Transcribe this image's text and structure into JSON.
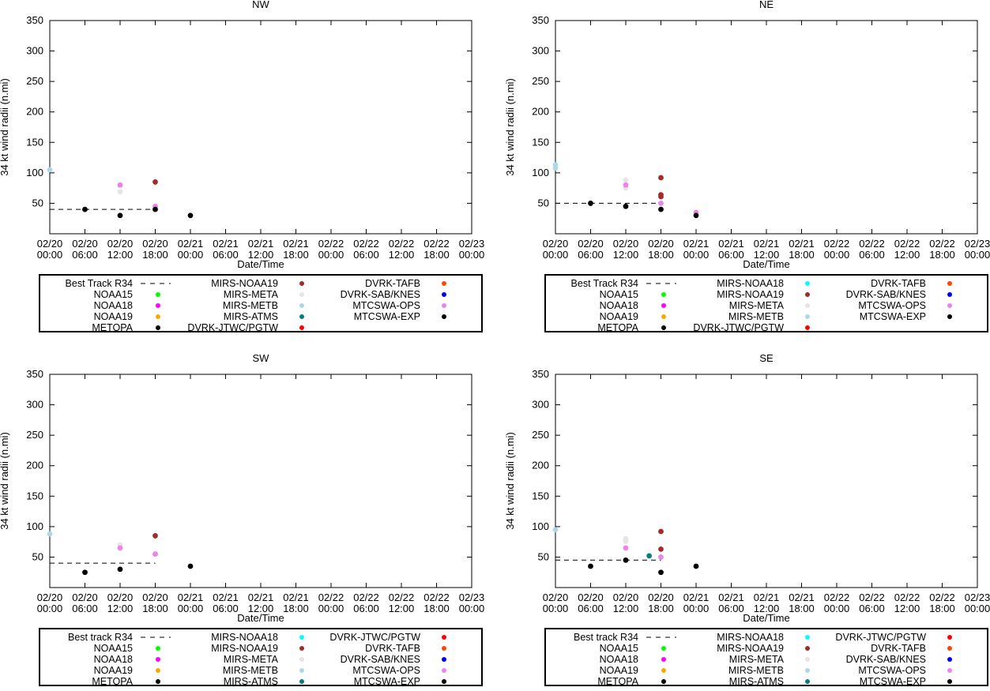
{
  "shared": {
    "ylabel": "34 kt wind radii (n.mi)",
    "xlabel": "Date/Time",
    "ylim": [
      0,
      350
    ],
    "yticks": [
      50,
      100,
      150,
      200,
      250,
      300,
      350
    ],
    "xticks": [
      {
        "date": "02/20",
        "time": "00:00"
      },
      {
        "date": "02/20",
        "time": "06:00"
      },
      {
        "date": "02/20",
        "time": "12:00"
      },
      {
        "date": "02/20",
        "time": "18:00"
      },
      {
        "date": "02/21",
        "time": "00:00"
      },
      {
        "date": "02/21",
        "time": "06:00"
      },
      {
        "date": "02/21",
        "time": "12:00"
      },
      {
        "date": "02/21",
        "time": "18:00"
      },
      {
        "date": "02/22",
        "time": "00:00"
      },
      {
        "date": "02/22",
        "time": "06:00"
      },
      {
        "date": "02/22",
        "time": "12:00"
      },
      {
        "date": "02/22",
        "time": "18:00"
      },
      {
        "date": "02/23",
        "time": "00:00"
      }
    ],
    "xlim_hours": [
      0,
      72
    ]
  },
  "chart_data": [
    {
      "type": "scatter",
      "title": "NW",
      "xlabel": "Date/Time",
      "ylabel": "34 kt wind radii (n.mi)",
      "best_track": {
        "x": [
          0,
          18
        ],
        "y": [
          40,
          40
        ]
      },
      "series": [
        {
          "name": "MIRS-METB",
          "color": "#add8e6",
          "points": [
            [
              0,
              105
            ]
          ]
        },
        {
          "name": "MIRS-META",
          "color": "#e5e5e5",
          "points": [
            [
              12,
              69
            ]
          ]
        },
        {
          "name": "MTCSWA-OPS",
          "color": "#ee82ee",
          "points": [
            [
              12,
              80
            ],
            [
              18,
              45
            ]
          ]
        },
        {
          "name": "MIRS-NOAA19",
          "color": "#a52a2a",
          "points": [
            [
              18,
              85
            ]
          ]
        },
        {
          "name": "MTCSWA-EXP",
          "color": "#000000",
          "points": [
            [
              6,
              40
            ],
            [
              12,
              30
            ],
            [
              18,
              40
            ],
            [
              24,
              30
            ]
          ]
        }
      ],
      "legend": [
        {
          "label": "Best Track R34",
          "marker": "dash",
          "color": "#000000"
        },
        {
          "label": "NOAA15",
          "marker": "dot",
          "color": "#00ff00"
        },
        {
          "label": "NOAA18",
          "marker": "dot",
          "color": "#ff00ff"
        },
        {
          "label": "NOAA19",
          "marker": "dot",
          "color": "#ffa500"
        },
        {
          "label": "METOPA",
          "marker": "dot",
          "color": "#000000"
        },
        {
          "label": "MIRS-NOAA19",
          "marker": "dot",
          "color": "#a52a2a"
        },
        {
          "label": "MIRS-META",
          "marker": "dot",
          "color": "#e5e5e5"
        },
        {
          "label": "MIRS-METB",
          "marker": "dot",
          "color": "#add8e6"
        },
        {
          "label": "MIRS-ATMS",
          "marker": "dot",
          "color": "#008080"
        },
        {
          "label": "DVRK-JTWC/PGTW",
          "marker": "dot",
          "color": "#ff0000"
        },
        {
          "label": "DVRK-TAFB",
          "marker": "dot",
          "color": "#ff4500"
        },
        {
          "label": "DVRK-SAB/KNES",
          "marker": "dot",
          "color": "#0000ff"
        },
        {
          "label": "MTCSWA-OPS",
          "marker": "dot",
          "color": "#ee82ee"
        },
        {
          "label": "MTCSWA-EXP",
          "marker": "dot",
          "color": "#000000"
        }
      ]
    },
    {
      "type": "scatter",
      "title": "NE",
      "xlabel": "Date/Time",
      "ylabel": "34 kt wind radii (n.mi)",
      "best_track": {
        "x": [
          0,
          18
        ],
        "y": [
          50,
          50
        ]
      },
      "series": [
        {
          "name": "MIRS-METB",
          "color": "#add8e6",
          "points": [
            [
              0,
              113
            ],
            [
              0,
              108
            ]
          ]
        },
        {
          "name": "MIRS-META",
          "color": "#e5e5e5",
          "points": [
            [
              12,
              88
            ],
            [
              12,
              75
            ]
          ]
        },
        {
          "name": "MTCSWA-OPS",
          "color": "#ee82ee",
          "points": [
            [
              12,
              80
            ],
            [
              18,
              50
            ],
            [
              24,
              35
            ]
          ]
        },
        {
          "name": "MIRS-NOAA19",
          "color": "#a52a2a",
          "points": [
            [
              18,
              92
            ],
            [
              18,
              64
            ],
            [
              18,
              61
            ]
          ]
        },
        {
          "name": "MTCSWA-EXP",
          "color": "#000000",
          "points": [
            [
              6,
              50
            ],
            [
              12,
              45
            ],
            [
              18,
              40
            ],
            [
              24,
              30
            ]
          ]
        }
      ],
      "legend": [
        {
          "label": "Best Track R34",
          "marker": "dash",
          "color": "#000000"
        },
        {
          "label": "NOAA15",
          "marker": "dot",
          "color": "#00ff00"
        },
        {
          "label": "NOAA18",
          "marker": "dot",
          "color": "#ff00ff"
        },
        {
          "label": "NOAA19",
          "marker": "dot",
          "color": "#ffa500"
        },
        {
          "label": "METOPA",
          "marker": "dot",
          "color": "#000000"
        },
        {
          "label": "MIRS-NOAA18",
          "marker": "dot",
          "color": "#00ffff"
        },
        {
          "label": "MIRS-NOAA19",
          "marker": "dot",
          "color": "#a52a2a"
        },
        {
          "label": "MIRS-META",
          "marker": "dot",
          "color": "#e5e5e5"
        },
        {
          "label": "MIRS-METB",
          "marker": "dot",
          "color": "#add8e6"
        },
        {
          "label": "DVRK-JTWC/PGTW",
          "marker": "dot",
          "color": "#ff0000"
        },
        {
          "label": "DVRK-TAFB",
          "marker": "dot",
          "color": "#ff4500"
        },
        {
          "label": "DVRK-SAB/KNES",
          "marker": "dot",
          "color": "#0000ff"
        },
        {
          "label": "MTCSWA-OPS",
          "marker": "dot",
          "color": "#ee82ee"
        },
        {
          "label": "MTCSWA-EXP",
          "marker": "dot",
          "color": "#000000"
        }
      ]
    },
    {
      "type": "scatter",
      "title": "SW",
      "xlabel": "Date/Time",
      "ylabel": "34 kt wind radii (n.mi)",
      "best_track": {
        "x": [
          0,
          18
        ],
        "y": [
          40,
          40
        ]
      },
      "series": [
        {
          "name": "MIRS-METB",
          "color": "#add8e6",
          "points": [
            [
              0,
              88
            ]
          ]
        },
        {
          "name": "MIRS-META",
          "color": "#e5e5e5",
          "points": [
            [
              12,
              70
            ]
          ]
        },
        {
          "name": "MTCSWA-OPS",
          "color": "#ee82ee",
          "points": [
            [
              12,
              65
            ],
            [
              18,
              55
            ]
          ]
        },
        {
          "name": "MIRS-NOAA19",
          "color": "#a52a2a",
          "points": [
            [
              18,
              85
            ]
          ]
        },
        {
          "name": "MTCSWA-EXP",
          "color": "#000000",
          "points": [
            [
              6,
              25
            ],
            [
              12,
              30
            ],
            [
              24,
              35
            ]
          ]
        }
      ],
      "legend": [
        {
          "label": "Best track R34",
          "marker": "dash",
          "color": "#000000"
        },
        {
          "label": "NOAA15",
          "marker": "dot",
          "color": "#00ff00"
        },
        {
          "label": "NOAA18",
          "marker": "dot",
          "color": "#ff00ff"
        },
        {
          "label": "NOAA19",
          "marker": "dot",
          "color": "#ffa500"
        },
        {
          "label": "METOPA",
          "marker": "dot",
          "color": "#000000"
        },
        {
          "label": "MIRS-NOAA18",
          "marker": "dot",
          "color": "#00ffff"
        },
        {
          "label": "MIRS-NOAA19",
          "marker": "dot",
          "color": "#a52a2a"
        },
        {
          "label": "MIRS-META",
          "marker": "dot",
          "color": "#e5e5e5"
        },
        {
          "label": "MIRS-METB",
          "marker": "dot",
          "color": "#add8e6"
        },
        {
          "label": "MIRS-ATMS",
          "marker": "dot",
          "color": "#008080"
        },
        {
          "label": "DVRK-JTWC/PGTW",
          "marker": "dot",
          "color": "#ff0000"
        },
        {
          "label": "DVRK-TAFB",
          "marker": "dot",
          "color": "#ff4500"
        },
        {
          "label": "DVRK-SAB/KNES",
          "marker": "dot",
          "color": "#0000ff"
        },
        {
          "label": "MTCSWA-OPS",
          "marker": "dot",
          "color": "#ee82ee"
        },
        {
          "label": "MTCSWA-EXP",
          "marker": "dot",
          "color": "#000000"
        }
      ]
    },
    {
      "type": "scatter",
      "title": "SE",
      "xlabel": "Date/Time",
      "ylabel": "34 kt wind radii (n.mi)",
      "best_track": {
        "x": [
          0,
          18
        ],
        "y": [
          45,
          45
        ]
      },
      "series": [
        {
          "name": "MIRS-METB",
          "color": "#add8e6",
          "points": [
            [
              0,
              95
            ]
          ]
        },
        {
          "name": "MIRS-META",
          "color": "#e5e5e5",
          "points": [
            [
              12,
              80
            ],
            [
              12,
              76
            ]
          ]
        },
        {
          "name": "MTCSWA-OPS",
          "color": "#ee82ee",
          "points": [
            [
              12,
              65
            ],
            [
              18,
              50
            ]
          ]
        },
        {
          "name": "MIRS-ATMS",
          "color": "#008080",
          "points": [
            [
              16,
              52
            ]
          ]
        },
        {
          "name": "MIRS-NOAA19",
          "color": "#a52a2a",
          "points": [
            [
              18,
              92
            ],
            [
              18,
              63
            ]
          ]
        },
        {
          "name": "MTCSWA-EXP",
          "color": "#000000",
          "points": [
            [
              6,
              35
            ],
            [
              12,
              45
            ],
            [
              18,
              25
            ],
            [
              24,
              35
            ]
          ]
        }
      ],
      "legend": [
        {
          "label": "Best track R34",
          "marker": "dash",
          "color": "#000000"
        },
        {
          "label": "NOAA15",
          "marker": "dot",
          "color": "#00ff00"
        },
        {
          "label": "NOAA18",
          "marker": "dot",
          "color": "#ff00ff"
        },
        {
          "label": "NOAA19",
          "marker": "dot",
          "color": "#ffa500"
        },
        {
          "label": "METOPA",
          "marker": "dot",
          "color": "#000000"
        },
        {
          "label": "MIRS-NOAA18",
          "marker": "dot",
          "color": "#00ffff"
        },
        {
          "label": "MIRS-NOAA19",
          "marker": "dot",
          "color": "#a52a2a"
        },
        {
          "label": "MIRS-META",
          "marker": "dot",
          "color": "#e5e5e5"
        },
        {
          "label": "MIRS-METB",
          "marker": "dot",
          "color": "#add8e6"
        },
        {
          "label": "MIRS-ATMS",
          "marker": "dot",
          "color": "#008080"
        },
        {
          "label": "DVRK-JTWC/PGTW",
          "marker": "dot",
          "color": "#ff0000"
        },
        {
          "label": "DVRK-TAFB",
          "marker": "dot",
          "color": "#ff4500"
        },
        {
          "label": "DVRK-SAB/KNES",
          "marker": "dot",
          "color": "#0000ff"
        },
        {
          "label": "MTCSWA-OPS",
          "marker": "dot",
          "color": "#ee82ee"
        },
        {
          "label": "MTCSWA-EXP",
          "marker": "dot",
          "color": "#000000"
        }
      ]
    }
  ]
}
